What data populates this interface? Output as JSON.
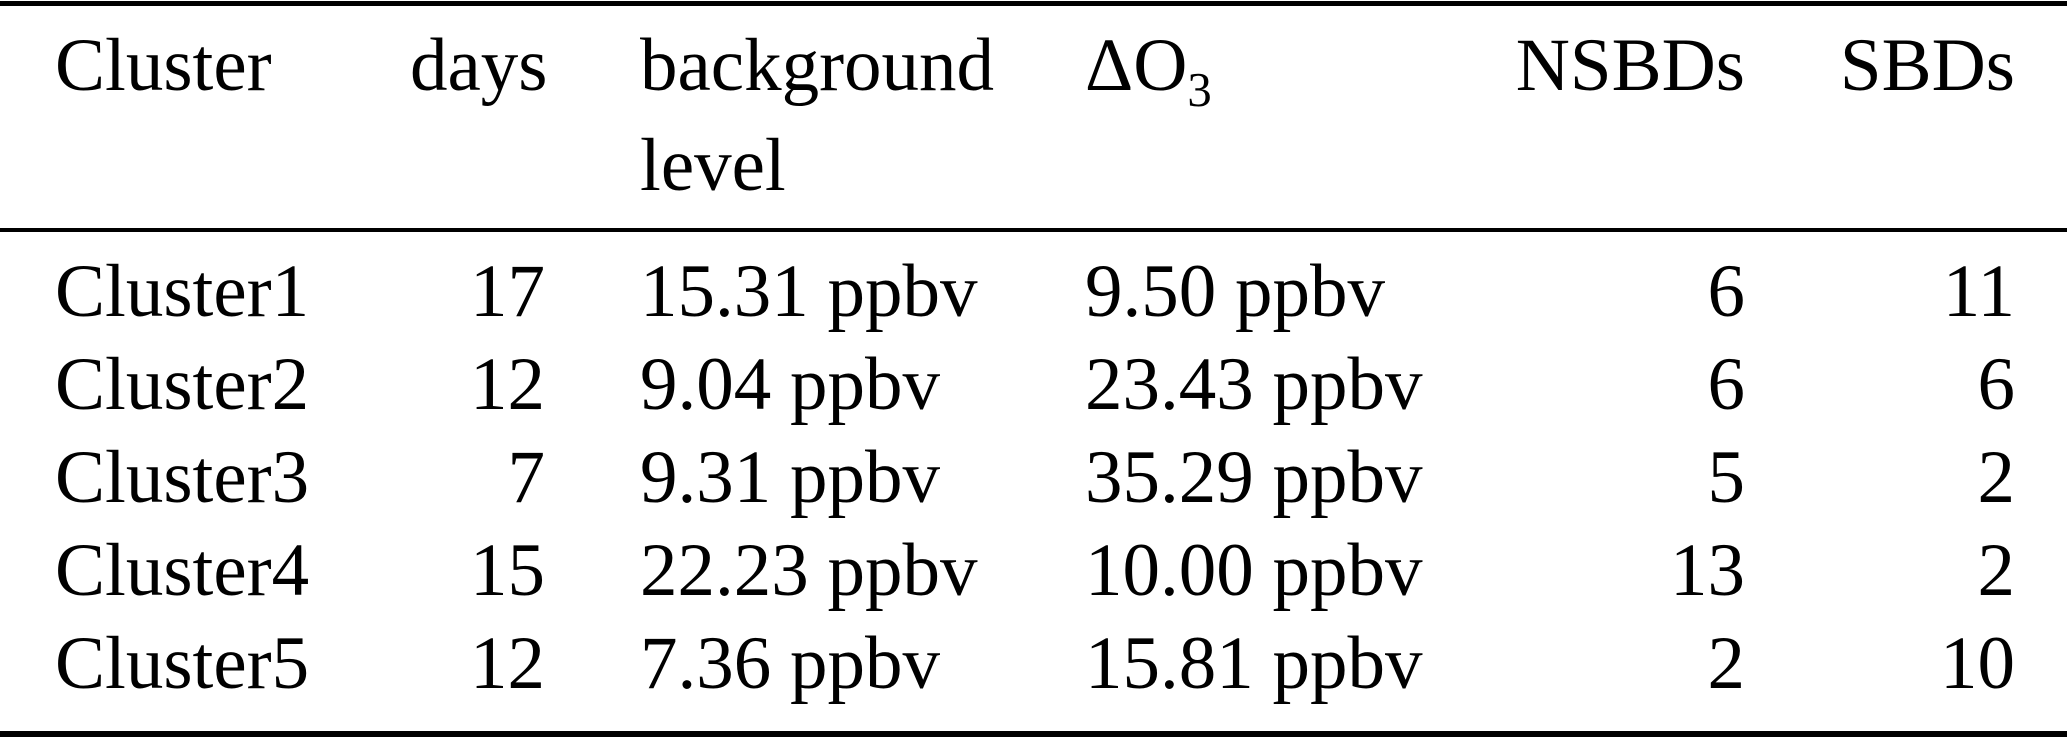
{
  "table": {
    "columns": [
      {
        "label": "Cluster"
      },
      {
        "label": "days"
      },
      {
        "label": "background level",
        "line1": "background",
        "line2": "level"
      },
      {
        "label": "ΔO3",
        "prefix": "ΔO",
        "subscript": "3"
      },
      {
        "label": "NSBDs"
      },
      {
        "label": "SBDs"
      }
    ],
    "rows": [
      {
        "cluster": "Cluster1",
        "days": "17",
        "background_level": "15.31 ppbv",
        "delta_o3": "9.50 ppbv",
        "nsbds": "6",
        "sbds": "11"
      },
      {
        "cluster": "Cluster2",
        "days": "12",
        "background_level": "9.04 ppbv",
        "delta_o3": "23.43 ppbv",
        "nsbds": "6",
        "sbds": "6"
      },
      {
        "cluster": "Cluster3",
        "days": "7",
        "background_level": "9.31 ppbv",
        "delta_o3": "35.29 ppbv",
        "nsbds": "5",
        "sbds": "2"
      },
      {
        "cluster": "Cluster4",
        "days": "15",
        "background_level": "22.23 ppbv",
        "delta_o3": "10.00 ppbv",
        "nsbds": "13",
        "sbds": "2"
      },
      {
        "cluster": "Cluster5",
        "days": "12",
        "background_level": "7.36 ppbv",
        "delta_o3": "15.81 ppbv",
        "nsbds": "2",
        "sbds": "10"
      }
    ],
    "colors": {
      "text": "#000000",
      "background": "#ffffff",
      "rule": "#000000"
    }
  }
}
